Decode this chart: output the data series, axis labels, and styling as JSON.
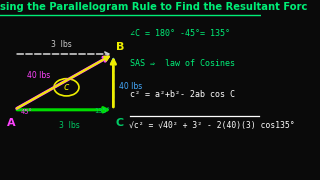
{
  "bg_color": "#0a0a0a",
  "title_color": "#00ee77",
  "title_text": "sing the Parallelogram Rule to Find the Resultant Forc",
  "title_fontsize": 7.2,
  "A": [
    0.055,
    0.39
  ],
  "B": [
    0.435,
    0.7
  ],
  "C": [
    0.435,
    0.39
  ],
  "green_arrow_color": "#00dd00",
  "pink_arrow_color": "#ff44ff",
  "yellow_arrow_color": "#eeee00",
  "white_dashed_color": "#cccccc",
  "cyan_dashed_color": "#44aaff",
  "label_A_color": "#ff44ff",
  "label_B_color": "#eeee00",
  "label_C_color": "#00cc66",
  "c_circle_color": "#eeee00",
  "angle45_color": "#ff44ff",
  "angle135_color": "#00cc66",
  "lbs3_top_color": "#cccccc",
  "lbs40_left_color": "#ff44ff",
  "lbs40_right_color": "#44aaff",
  "lbs3_bot_color": "#00cc66",
  "math_color1": "#00ee77",
  "math_color2": "#ffffff",
  "underline_color": "#ffffff"
}
